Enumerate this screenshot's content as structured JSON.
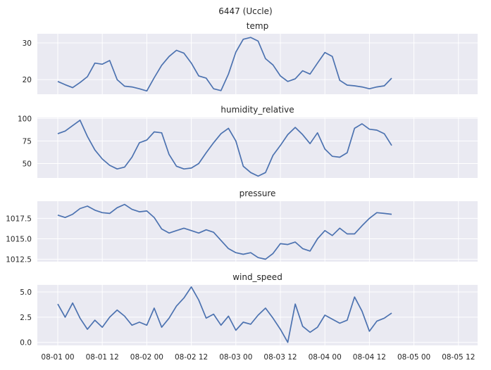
{
  "figure_title": "6447 (Uccle)",
  "chart_data": {
    "type": "line",
    "title": "6447 (Uccle)",
    "x_tick_labels": [
      "08-01 00",
      "08-01 12",
      "08-02 00",
      "08-02 12",
      "08-03 00",
      "08-03 12",
      "08-04 00",
      "08-04 12",
      "08-05 00",
      "08-05 12"
    ],
    "x_start": "08-01 00",
    "x_step_hours": 2,
    "grid": true,
    "colors": {
      "line": "#4c72b0",
      "panel_background": "#eaeaf2",
      "grid": "#ffffff"
    },
    "panels": [
      {
        "name": "temp",
        "title": "temp",
        "ylim": [
          16,
          32.5
        ],
        "yticks": [
          20,
          30
        ],
        "y_tick_labels": [
          "20",
          "30"
        ],
        "values": [
          19.5,
          18.6,
          17.8,
          19.2,
          20.8,
          24.5,
          24.2,
          25.2,
          20.0,
          18.2,
          18.0,
          17.5,
          16.9,
          20.5,
          23.9,
          26.3,
          28.0,
          27.2,
          24.5,
          21.0,
          20.4,
          17.5,
          17.0,
          21.5,
          27.5,
          31.0,
          31.5,
          30.5,
          25.7,
          24.0,
          21.0,
          19.5,
          20.2,
          22.4,
          21.5,
          24.5,
          27.4,
          26.3,
          19.8,
          18.5,
          18.3,
          18.0,
          17.5,
          18.0,
          18.3,
          20.4
        ]
      },
      {
        "name": "humidity_relative",
        "title": "humidity_relative",
        "ylim": [
          34,
          101
        ],
        "yticks": [
          50,
          75,
          100
        ],
        "y_tick_labels": [
          "50",
          "75",
          "100"
        ],
        "values": [
          83,
          86,
          92,
          98,
          80,
          65,
          55,
          48,
          44,
          46,
          57,
          73,
          76,
          85,
          84,
          60,
          47,
          44,
          45,
          50,
          62,
          73,
          83,
          89,
          75,
          47,
          40,
          36,
          40,
          59,
          70,
          82,
          90,
          82,
          72,
          84,
          66,
          58,
          57,
          62,
          89,
          94,
          88,
          87,
          83,
          70
        ]
      },
      {
        "name": "pressure",
        "title": "pressure",
        "ylim": [
          1012.2,
          1019.6
        ],
        "yticks": [
          1012.5,
          1015.0,
          1017.5
        ],
        "y_tick_labels": [
          "1012.5",
          "1015.0",
          "1017.5"
        ],
        "values": [
          1017.9,
          1017.6,
          1018.0,
          1018.7,
          1019.0,
          1018.5,
          1018.2,
          1018.1,
          1018.8,
          1019.2,
          1018.6,
          1018.3,
          1018.4,
          1017.6,
          1016.2,
          1015.7,
          1016.0,
          1016.3,
          1016.0,
          1015.7,
          1016.1,
          1015.8,
          1014.8,
          1013.8,
          1013.3,
          1013.1,
          1013.3,
          1012.7,
          1012.5,
          1013.2,
          1014.4,
          1014.3,
          1014.6,
          1013.8,
          1013.5,
          1015.0,
          1016.0,
          1015.4,
          1016.3,
          1015.6,
          1015.6,
          1016.6,
          1017.5,
          1018.2,
          1018.1,
          1018.0
        ]
      },
      {
        "name": "wind_speed",
        "title": "wind_speed",
        "ylim": [
          -0.3,
          5.7
        ],
        "yticks": [
          0.0,
          2.5,
          5.0
        ],
        "y_tick_labels": [
          "0.0",
          "2.5",
          "5.0"
        ],
        "values": [
          3.8,
          2.5,
          3.9,
          2.4,
          1.3,
          2.2,
          1.5,
          2.5,
          3.2,
          2.6,
          1.7,
          2.0,
          1.7,
          3.4,
          1.5,
          2.4,
          3.6,
          4.4,
          5.5,
          4.2,
          2.4,
          2.8,
          1.7,
          2.6,
          1.2,
          2.0,
          1.8,
          2.7,
          3.4,
          2.4,
          1.3,
          0.0,
          3.8,
          1.6,
          1.0,
          1.5,
          2.7,
          2.3,
          1.9,
          2.2,
          4.5,
          3.1,
          1.1,
          2.1,
          2.4,
          2.9
        ]
      }
    ]
  }
}
